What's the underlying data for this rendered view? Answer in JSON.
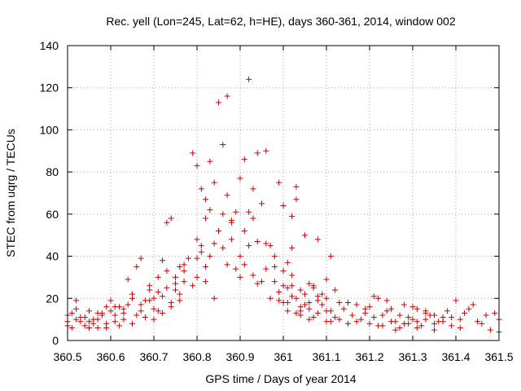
{
  "chart_data": {
    "type": "scatter",
    "title": "Rec. yell (Lon=245, Lat=62, h=HE), days 360-361, 2014, window 002",
    "xlabel": "GPS time / Days of year 2014",
    "ylabel": "STEC from uqrg / TECUs",
    "xlim": [
      360.5,
      361.5
    ],
    "ylim": [
      0,
      140
    ],
    "x_ticks": [
      360.5,
      360.6,
      360.7,
      360.8,
      360.9,
      361.0,
      361.1,
      361.2,
      361.3,
      361.4,
      361.5
    ],
    "x_tick_labels": [
      "360.5",
      "360.6",
      "360.7",
      "360.8",
      "360.9",
      "361",
      "361.1",
      "361.2",
      "361.3",
      "361.4",
      "361.5"
    ],
    "y_ticks": [
      0,
      20,
      40,
      60,
      80,
      100,
      120,
      140
    ],
    "y_tick_labels": [
      "0",
      "20",
      "40",
      "60",
      "80",
      "100",
      "120",
      "140"
    ],
    "grid": true,
    "marker": "+",
    "color": "#cc0000",
    "series": [
      {
        "points": [
          [
            360.5,
            7
          ],
          [
            360.51,
            13
          ],
          [
            360.52,
            19
          ],
          [
            360.53,
            9
          ],
          [
            360.54,
            7
          ],
          [
            360.55,
            14
          ],
          [
            360.56,
            10
          ],
          [
            360.57,
            6
          ],
          [
            360.58,
            12
          ],
          [
            360.59,
            8
          ],
          [
            360.6,
            19
          ],
          [
            360.61,
            12
          ],
          [
            360.62,
            7
          ],
          [
            360.63,
            15
          ],
          [
            360.64,
            29
          ],
          [
            360.65,
            22
          ],
          [
            360.66,
            35
          ],
          [
            360.67,
            39
          ],
          [
            360.68,
            19
          ],
          [
            360.69,
            24
          ],
          [
            360.5,
            9
          ],
          [
            360.52,
            10
          ],
          [
            360.54,
            11
          ],
          [
            360.56,
            8
          ],
          [
            360.58,
            13
          ],
          [
            360.6,
            14
          ],
          [
            360.62,
            16
          ],
          [
            360.64,
            17
          ],
          [
            360.66,
            12
          ],
          [
            360.68,
            11
          ],
          [
            360.7,
            15
          ],
          [
            360.72,
            21
          ],
          [
            360.74,
            18
          ],
          [
            360.76,
            22
          ],
          [
            360.5,
            12
          ],
          [
            360.52,
            15
          ],
          [
            360.55,
            6
          ],
          [
            360.57,
            10
          ],
          [
            360.59,
            16
          ],
          [
            360.61,
            9
          ],
          [
            360.63,
            13
          ],
          [
            360.65,
            20
          ],
          [
            360.67,
            17
          ],
          [
            360.69,
            26
          ],
          [
            360.71,
            30
          ],
          [
            360.73,
            25
          ],
          [
            360.75,
            27
          ],
          [
            360.77,
            33
          ],
          [
            360.7,
            20
          ],
          [
            360.71,
            14
          ],
          [
            360.72,
            38
          ],
          [
            360.73,
            56
          ],
          [
            360.74,
            58
          ],
          [
            360.75,
            30
          ],
          [
            360.76,
            35
          ],
          [
            360.77,
            36
          ],
          [
            360.78,
            39
          ],
          [
            360.79,
            89
          ],
          [
            360.8,
            83
          ],
          [
            360.81,
            72
          ],
          [
            360.82,
            67
          ],
          [
            360.83,
            85
          ],
          [
            360.71,
            23
          ],
          [
            360.73,
            33
          ],
          [
            360.75,
            24
          ],
          [
            360.77,
            28
          ],
          [
            360.79,
            26
          ],
          [
            360.8,
            48
          ],
          [
            360.81,
            45
          ],
          [
            360.82,
            58
          ],
          [
            360.83,
            62
          ],
          [
            360.84,
            75
          ],
          [
            360.85,
            113
          ],
          [
            360.86,
            93
          ],
          [
            360.87,
            116
          ],
          [
            360.88,
            57
          ],
          [
            360.8,
            39
          ],
          [
            360.81,
            42
          ],
          [
            360.82,
            28
          ],
          [
            360.83,
            40
          ],
          [
            360.84,
            46
          ],
          [
            360.85,
            52
          ],
          [
            360.86,
            60
          ],
          [
            360.87,
            69
          ],
          [
            360.88,
            56
          ],
          [
            360.89,
            61
          ],
          [
            360.9,
            77
          ],
          [
            360.91,
            86
          ],
          [
            360.92,
            124
          ],
          [
            360.93,
            72
          ],
          [
            360.8,
            30
          ],
          [
            360.82,
            35
          ],
          [
            360.84,
            20
          ],
          [
            360.86,
            44
          ],
          [
            360.87,
            36
          ],
          [
            360.88,
            48
          ],
          [
            360.89,
            34
          ],
          [
            360.9,
            40
          ],
          [
            360.91,
            52
          ],
          [
            360.92,
            61
          ],
          [
            360.93,
            58
          ],
          [
            360.94,
            89
          ],
          [
            360.95,
            65
          ],
          [
            360.96,
            90
          ],
          [
            360.9,
            30
          ],
          [
            360.91,
            36
          ],
          [
            360.92,
            45
          ],
          [
            360.93,
            31
          ],
          [
            360.94,
            47
          ],
          [
            360.95,
            28
          ],
          [
            360.96,
            46
          ],
          [
            360.97,
            20
          ],
          [
            360.98,
            40
          ],
          [
            360.99,
            75
          ],
          [
            361.0,
            64
          ],
          [
            361.01,
            37
          ],
          [
            361.02,
            59
          ],
          [
            361.03,
            73
          ],
          [
            360.94,
            27
          ],
          [
            360.96,
            34
          ],
          [
            360.97,
            45
          ],
          [
            360.98,
            35
          ],
          [
            360.99,
            23
          ],
          [
            361.0,
            33
          ],
          [
            361.01,
            25
          ],
          [
            361.02,
            44
          ],
          [
            361.03,
            67
          ],
          [
            361.04,
            24
          ],
          [
            361.05,
            50
          ],
          [
            361.06,
            27
          ],
          [
            361.07,
            25
          ],
          [
            361.08,
            48
          ],
          [
            361.0,
            18
          ],
          [
            361.01,
            14
          ],
          [
            361.02,
            21
          ],
          [
            361.03,
            13
          ],
          [
            361.04,
            12
          ],
          [
            361.05,
            17
          ],
          [
            361.06,
            15
          ],
          [
            361.07,
            11
          ],
          [
            361.08,
            19
          ],
          [
            361.09,
            22
          ],
          [
            361.1,
            29
          ],
          [
            361.11,
            40
          ],
          [
            361.12,
            24
          ],
          [
            361.13,
            18
          ],
          [
            361.02,
            26
          ],
          [
            361.04,
            16
          ],
          [
            361.06,
            10
          ],
          [
            361.08,
            13
          ],
          [
            361.1,
            9
          ],
          [
            361.12,
            11
          ],
          [
            361.14,
            15
          ],
          [
            361.16,
            12
          ],
          [
            361.18,
            10
          ],
          [
            361.2,
            8
          ],
          [
            361.22,
            20
          ],
          [
            361.24,
            19
          ],
          [
            361.26,
            9
          ],
          [
            361.28,
            17
          ],
          [
            361.1,
            20
          ],
          [
            361.11,
            14
          ],
          [
            361.13,
            10
          ],
          [
            361.15,
            8
          ],
          [
            361.17,
            17
          ],
          [
            361.19,
            13
          ],
          [
            361.21,
            21
          ],
          [
            361.23,
            12
          ],
          [
            361.25,
            9
          ],
          [
            361.27,
            6
          ],
          [
            361.29,
            11
          ],
          [
            361.31,
            15
          ],
          [
            361.33,
            10
          ],
          [
            361.35,
            12
          ],
          [
            361.2,
            16
          ],
          [
            361.22,
            7
          ],
          [
            361.24,
            14
          ],
          [
            361.26,
            5
          ],
          [
            361.28,
            8
          ],
          [
            361.3,
            16
          ],
          [
            361.32,
            7
          ],
          [
            361.34,
            12
          ],
          [
            361.36,
            9
          ],
          [
            361.38,
            14
          ],
          [
            361.4,
            19
          ],
          [
            361.42,
            13
          ],
          [
            361.44,
            17
          ],
          [
            361.46,
            8
          ],
          [
            361.3,
            10
          ],
          [
            361.31,
            6
          ],
          [
            361.33,
            14
          ],
          [
            361.35,
            5
          ],
          [
            361.37,
            9
          ],
          [
            361.39,
            11
          ],
          [
            361.41,
            6
          ],
          [
            361.43,
            15
          ],
          [
            361.45,
            9
          ],
          [
            361.47,
            12
          ],
          [
            361.48,
            5
          ],
          [
            361.49,
            13
          ],
          [
            361.5,
            10
          ],
          [
            361.5,
            4
          ],
          [
            360.51,
            6
          ],
          [
            360.53,
            11
          ],
          [
            360.55,
            9
          ],
          [
            360.57,
            13
          ],
          [
            360.59,
            6
          ],
          [
            360.61,
            16
          ],
          [
            360.63,
            10
          ],
          [
            360.65,
            8
          ],
          [
            360.67,
            14
          ],
          [
            360.69,
            19
          ],
          [
            360.7,
            10
          ],
          [
            360.72,
            13
          ],
          [
            360.74,
            16
          ],
          [
            360.76,
            19
          ],
          [
            360.98,
            28
          ],
          [
            360.99,
            19
          ],
          [
            361.0,
            26
          ],
          [
            361.01,
            18
          ],
          [
            361.02,
            31
          ],
          [
            361.03,
            20
          ],
          [
            361.04,
            14
          ],
          [
            361.05,
            22
          ],
          [
            361.06,
            18
          ],
          [
            361.07,
            26
          ],
          [
            361.08,
            21
          ],
          [
            361.09,
            17
          ],
          [
            361.1,
            14
          ],
          [
            361.11,
            9
          ],
          [
            361.15,
            18
          ],
          [
            361.17,
            9
          ],
          [
            361.19,
            15
          ],
          [
            361.21,
            11
          ],
          [
            361.23,
            7
          ],
          [
            361.25,
            15
          ],
          [
            361.27,
            12
          ],
          [
            361.29,
            8
          ],
          [
            361.31,
            9
          ],
          [
            361.33,
            13
          ],
          [
            361.35,
            8
          ],
          [
            361.37,
            11
          ],
          [
            361.39,
            7
          ],
          [
            361.41,
            10
          ]
        ]
      }
    ]
  }
}
